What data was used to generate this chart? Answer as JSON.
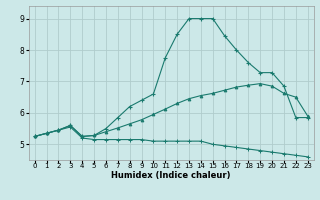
{
  "xlabel": "Humidex (Indice chaleur)",
  "bg_color": "#cce8e8",
  "grid_color": "#b0cccc",
  "line_color": "#1a7a6e",
  "xlim": [
    -0.5,
    23.5
  ],
  "ylim": [
    4.5,
    9.4
  ],
  "xticks": [
    0,
    1,
    2,
    3,
    4,
    5,
    6,
    7,
    8,
    9,
    10,
    11,
    12,
    13,
    14,
    15,
    16,
    17,
    18,
    19,
    20,
    21,
    22,
    23
  ],
  "yticks": [
    5,
    6,
    7,
    8,
    9
  ],
  "line1_x": [
    0,
    1,
    2,
    3,
    4,
    5,
    6,
    7,
    8,
    9,
    10,
    11,
    12,
    13,
    14,
    15,
    16,
    17,
    18,
    19,
    20,
    21,
    22,
    23
  ],
  "line1_y": [
    5.25,
    5.35,
    5.45,
    5.55,
    5.2,
    5.15,
    5.15,
    5.15,
    5.15,
    5.15,
    5.1,
    5.1,
    5.1,
    5.1,
    5.1,
    5.0,
    4.95,
    4.9,
    4.85,
    4.8,
    4.75,
    4.7,
    4.65,
    4.6
  ],
  "line2_x": [
    0,
    1,
    2,
    3,
    4,
    5,
    6,
    7,
    8,
    9,
    10,
    11,
    12,
    13,
    14,
    15,
    16,
    17,
    18,
    19,
    20,
    21,
    22,
    23
  ],
  "line2_y": [
    5.25,
    5.35,
    5.45,
    5.6,
    5.25,
    5.28,
    5.4,
    5.52,
    5.65,
    5.78,
    5.95,
    6.12,
    6.3,
    6.45,
    6.55,
    6.62,
    6.72,
    6.82,
    6.88,
    6.93,
    6.85,
    6.62,
    6.5,
    5.9
  ],
  "line3_x": [
    0,
    1,
    2,
    3,
    4,
    5,
    6,
    7,
    8,
    9,
    10,
    11,
    12,
    13,
    14,
    15,
    16,
    17,
    18,
    19,
    20,
    21,
    22,
    23
  ],
  "line3_y": [
    5.25,
    5.35,
    5.45,
    5.6,
    5.25,
    5.28,
    5.5,
    5.85,
    6.2,
    6.4,
    6.6,
    7.75,
    8.5,
    9.0,
    9.0,
    9.0,
    8.45,
    8.0,
    7.6,
    7.28,
    7.28,
    6.85,
    5.85,
    5.85
  ]
}
